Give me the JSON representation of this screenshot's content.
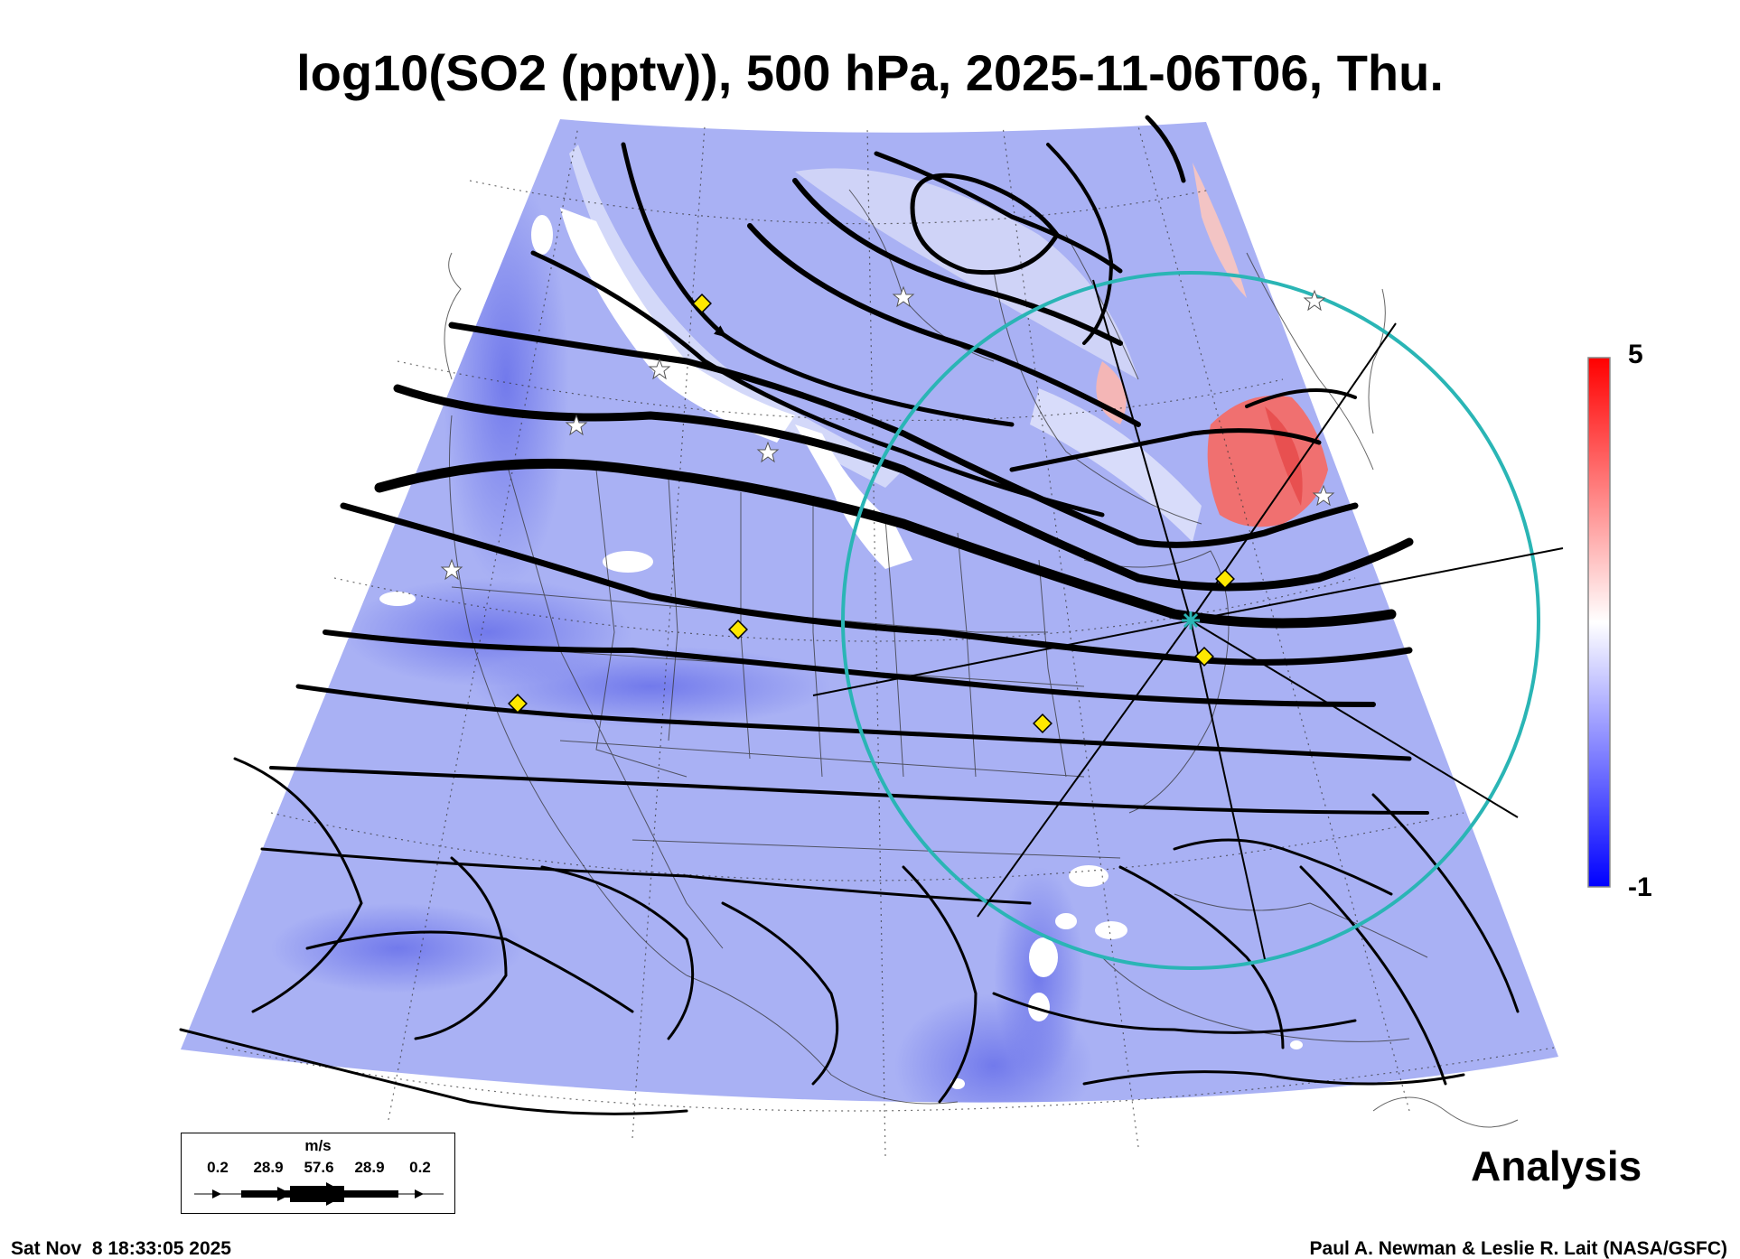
{
  "title": "log10(SO2 (pptv)), 500 hPa, 2025-11-06T06, Thu.",
  "colorbar": {
    "max": "5",
    "min": "-1",
    "colors": {
      "high": "#ff1a1a",
      "mid": "#ffffff",
      "low": "#1010ff"
    }
  },
  "legend": {
    "unit": "m/s",
    "labels": [
      "0.2",
      "28.9",
      "57.6",
      "28.9",
      "0.2"
    ]
  },
  "analysis_label": "Analysis",
  "timestamp": "Sat Nov  8 18:33:05 2025",
  "credit": "Paul A. Newman & Leslie R. Lait (NASA/GSFC)",
  "map_colors": {
    "field": "#a9b1f4",
    "ring": "#2ab5b5",
    "marker": "#ffe800",
    "streamline": "#000000",
    "high_so2": "#f07070"
  }
}
